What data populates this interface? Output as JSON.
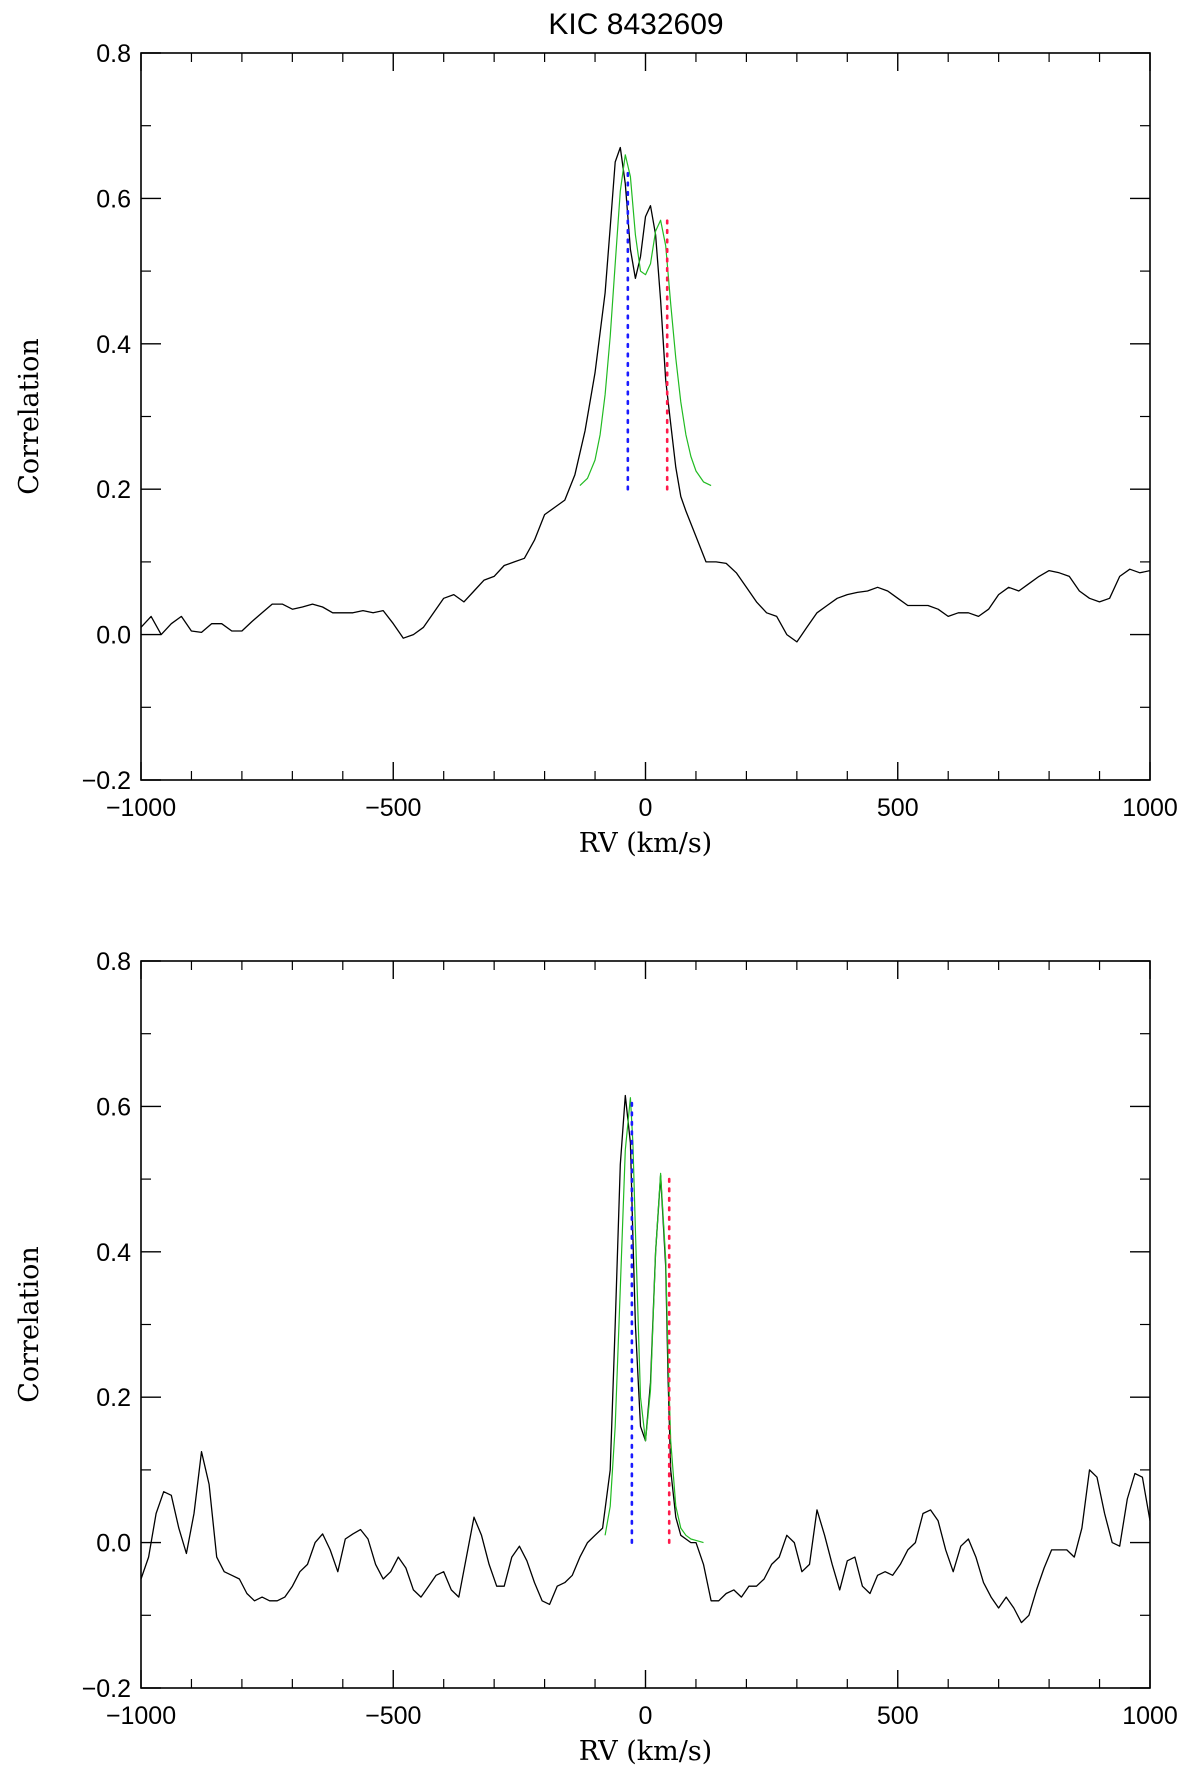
{
  "title": "KIC 8432609",
  "chart_data": [
    {
      "type": "line",
      "panel": "top",
      "xlabel": "RV (km/s)",
      "ylabel": "Correlation",
      "xlim": [
        -1000,
        1000
      ],
      "ylim": [
        -0.2,
        0.8
      ],
      "xticks": [
        -1000,
        -500,
        0,
        500,
        1000
      ],
      "xtick_labels": [
        "−1000",
        "−500",
        "0",
        "500",
        "1000"
      ],
      "yticks": [
        -0.2,
        0.0,
        0.2,
        0.4,
        0.6,
        0.8
      ],
      "ytick_labels": [
        "−0.2",
        "0.0",
        "0.2",
        "0.4",
        "0.6",
        "0.8"
      ],
      "grid": false,
      "series": [
        {
          "role": "cross-correlation",
          "color": "#000000",
          "x": [
            -1000,
            -980,
            -960,
            -940,
            -920,
            -900,
            -880,
            -860,
            -840,
            -820,
            -800,
            -780,
            -760,
            -740,
            -720,
            -700,
            -680,
            -660,
            -640,
            -620,
            -600,
            -580,
            -560,
            -540,
            -520,
            -500,
            -480,
            -460,
            -440,
            -420,
            -400,
            -380,
            -360,
            -340,
            -320,
            -300,
            -280,
            -260,
            -240,
            -220,
            -200,
            -180,
            -160,
            -140,
            -120,
            -100,
            -80,
            -70,
            -60,
            -50,
            -40,
            -30,
            -20,
            -10,
            0,
            10,
            20,
            30,
            40,
            50,
            60,
            70,
            80,
            100,
            120,
            140,
            160,
            180,
            200,
            220,
            240,
            260,
            280,
            300,
            320,
            340,
            360,
            380,
            400,
            420,
            440,
            460,
            480,
            500,
            520,
            540,
            560,
            580,
            600,
            620,
            640,
            660,
            680,
            700,
            720,
            740,
            760,
            780,
            800,
            820,
            840,
            860,
            880,
            900,
            920,
            940,
            960,
            980,
            1000
          ],
          "y": [
            0.01,
            0.025,
            0.0,
            0.015,
            0.025,
            0.005,
            0.003,
            0.015,
            0.015,
            0.005,
            0.005,
            0.018,
            0.03,
            0.042,
            0.042,
            0.035,
            0.038,
            0.042,
            0.038,
            0.03,
            0.03,
            0.03,
            0.033,
            0.03,
            0.033,
            0.015,
            -0.005,
            0.0,
            0.01,
            0.03,
            0.05,
            0.055,
            0.045,
            0.06,
            0.075,
            0.08,
            0.095,
            0.1,
            0.105,
            0.13,
            0.165,
            0.175,
            0.185,
            0.22,
            0.28,
            0.36,
            0.47,
            0.56,
            0.65,
            0.67,
            0.62,
            0.53,
            0.49,
            0.52,
            0.575,
            0.59,
            0.55,
            0.46,
            0.35,
            0.29,
            0.23,
            0.19,
            0.17,
            0.135,
            0.1,
            0.1,
            0.098,
            0.085,
            0.065,
            0.045,
            0.03,
            0.025,
            0.0,
            -0.01,
            0.01,
            0.03,
            0.04,
            0.05,
            0.055,
            0.058,
            0.06,
            0.065,
            0.06,
            0.05,
            0.04,
            0.04,
            0.04,
            0.035,
            0.025,
            0.03,
            0.03,
            0.025,
            0.035,
            0.055,
            0.065,
            0.06,
            0.07,
            0.08,
            0.088,
            0.085,
            0.08,
            0.06,
            0.05,
            0.045,
            0.05,
            0.08,
            0.09,
            0.085,
            0.088
          ]
        },
        {
          "role": "two-gaussian fit",
          "color": "#22bb22",
          "x": [
            -130,
            -115,
            -100,
            -90,
            -80,
            -70,
            -60,
            -50,
            -40,
            -30,
            -20,
            -10,
            0,
            10,
            20,
            30,
            40,
            50,
            60,
            70,
            80,
            90,
            100,
            115,
            130
          ],
          "y": [
            0.205,
            0.215,
            0.24,
            0.275,
            0.33,
            0.41,
            0.51,
            0.61,
            0.66,
            0.63,
            0.55,
            0.5,
            0.495,
            0.51,
            0.555,
            0.57,
            0.535,
            0.455,
            0.38,
            0.32,
            0.275,
            0.245,
            0.225,
            0.21,
            0.205
          ]
        }
      ],
      "markers": [
        {
          "role": "primary component RV",
          "x": -35,
          "y_from": 0.2,
          "y_to": 0.64,
          "color": "#1a1aff",
          "style": "dotted"
        },
        {
          "role": "secondary component RV",
          "x": 43,
          "y_from": 0.2,
          "y_to": 0.57,
          "color": "#ff1a4a",
          "style": "dotted"
        }
      ]
    },
    {
      "type": "line",
      "panel": "bottom",
      "xlabel": "RV (km/s)",
      "ylabel": "Correlation",
      "xlim": [
        -1000,
        1000
      ],
      "ylim": [
        -0.2,
        0.8
      ],
      "xticks": [
        -1000,
        -500,
        0,
        500,
        1000
      ],
      "xtick_labels": [
        "−1000",
        "−500",
        "0",
        "500",
        "1000"
      ],
      "yticks": [
        -0.2,
        0.0,
        0.2,
        0.4,
        0.6,
        0.8
      ],
      "ytick_labels": [
        "−0.2",
        "0.0",
        "0.2",
        "0.4",
        "0.6",
        "0.8"
      ],
      "grid": false,
      "series": [
        {
          "role": "cross-correlation",
          "color": "#000000",
          "x": [
            -1000,
            -985,
            -970,
            -955,
            -940,
            -925,
            -910,
            -895,
            -880,
            -865,
            -850,
            -835,
            -820,
            -805,
            -790,
            -775,
            -760,
            -745,
            -730,
            -715,
            -700,
            -685,
            -670,
            -655,
            -640,
            -625,
            -610,
            -595,
            -580,
            -565,
            -550,
            -535,
            -520,
            -505,
            -490,
            -475,
            -460,
            -445,
            -430,
            -415,
            -400,
            -385,
            -370,
            -355,
            -340,
            -325,
            -310,
            -295,
            -280,
            -265,
            -250,
            -235,
            -220,
            -205,
            -190,
            -175,
            -160,
            -145,
            -130,
            -115,
            -100,
            -85,
            -70,
            -60,
            -50,
            -40,
            -30,
            -25,
            -20,
            -10,
            0,
            10,
            20,
            30,
            40,
            45,
            50,
            60,
            70,
            80,
            90,
            100,
            115,
            130,
            145,
            160,
            175,
            190,
            205,
            220,
            235,
            250,
            265,
            280,
            295,
            310,
            325,
            340,
            355,
            370,
            385,
            400,
            415,
            430,
            445,
            460,
            475,
            490,
            505,
            520,
            535,
            550,
            565,
            580,
            595,
            610,
            625,
            640,
            655,
            670,
            685,
            700,
            715,
            730,
            745,
            760,
            775,
            790,
            805,
            820,
            835,
            850,
            865,
            880,
            895,
            910,
            925,
            940,
            955,
            970,
            985,
            1000
          ],
          "y": [
            -0.05,
            -0.02,
            0.04,
            0.07,
            0.065,
            0.02,
            -0.015,
            0.04,
            0.125,
            0.08,
            -0.02,
            -0.04,
            -0.045,
            -0.05,
            -0.07,
            -0.08,
            -0.075,
            -0.08,
            -0.08,
            -0.075,
            -0.06,
            -0.04,
            -0.03,
            0.0,
            0.012,
            -0.01,
            -0.04,
            0.005,
            0.012,
            0.018,
            0.005,
            -0.03,
            -0.05,
            -0.04,
            -0.02,
            -0.035,
            -0.065,
            -0.075,
            -0.06,
            -0.045,
            -0.04,
            -0.065,
            -0.075,
            -0.02,
            0.035,
            0.01,
            -0.03,
            -0.06,
            -0.06,
            -0.02,
            -0.005,
            -0.025,
            -0.055,
            -0.08,
            -0.085,
            -0.06,
            -0.055,
            -0.045,
            -0.02,
            0.0,
            0.01,
            0.02,
            0.1,
            0.3,
            0.52,
            0.615,
            0.55,
            0.42,
            0.3,
            0.16,
            0.14,
            0.22,
            0.4,
            0.505,
            0.38,
            0.22,
            0.1,
            0.035,
            0.01,
            0.005,
            0.0,
            0.0,
            -0.03,
            -0.08,
            -0.08,
            -0.07,
            -0.065,
            -0.075,
            -0.06,
            -0.06,
            -0.05,
            -0.03,
            -0.02,
            0.01,
            0.0,
            -0.04,
            -0.03,
            0.045,
            0.01,
            -0.03,
            -0.065,
            -0.025,
            -0.02,
            -0.06,
            -0.07,
            -0.045,
            -0.04,
            -0.045,
            -0.03,
            -0.01,
            0.0,
            0.04,
            0.045,
            0.03,
            -0.01,
            -0.04,
            -0.005,
            0.005,
            -0.02,
            -0.055,
            -0.075,
            -0.09,
            -0.075,
            -0.09,
            -0.11,
            -0.1,
            -0.065,
            -0.035,
            -0.01,
            -0.01,
            -0.01,
            -0.02,
            0.02,
            0.1,
            0.09,
            0.04,
            0.0,
            -0.005,
            0.06,
            0.095,
            0.09,
            0.03
          ]
        },
        {
          "role": "two-gaussian fit",
          "color": "#22bb22",
          "x": [
            -80,
            -70,
            -60,
            -50,
            -40,
            -30,
            -25,
            -20,
            -10,
            0,
            10,
            20,
            30,
            40,
            45,
            50,
            60,
            70,
            80,
            90,
            100,
            115
          ],
          "y": [
            0.01,
            0.05,
            0.16,
            0.35,
            0.54,
            0.612,
            0.55,
            0.43,
            0.2,
            0.14,
            0.21,
            0.4,
            0.508,
            0.39,
            0.25,
            0.14,
            0.05,
            0.02,
            0.01,
            0.005,
            0.003,
            0.0
          ]
        }
      ],
      "markers": [
        {
          "role": "primary component RV",
          "x": -27,
          "y_from": 0.0,
          "y_to": 0.605,
          "color": "#1a1aff",
          "style": "dotted"
        },
        {
          "role": "secondary component RV",
          "x": 47,
          "y_from": 0.0,
          "y_to": 0.5,
          "color": "#ff1a4a",
          "style": "dotted"
        }
      ]
    }
  ]
}
